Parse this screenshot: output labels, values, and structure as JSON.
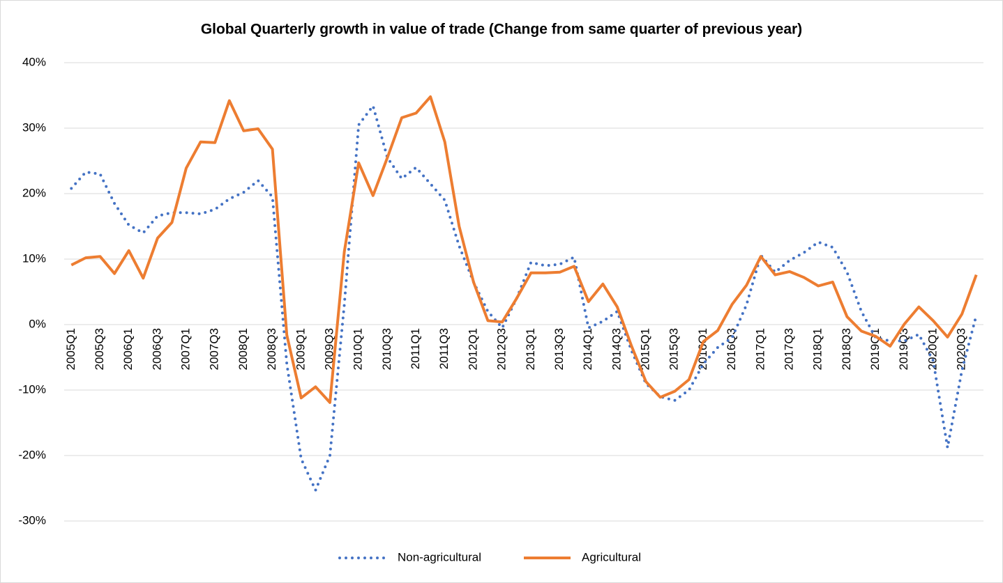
{
  "chart_data": {
    "type": "line",
    "title": "Global Quarterly growth in value of trade (Change from same quarter of previous year)",
    "categories": [
      "2005Q1",
      null,
      "2005Q3",
      null,
      "2006Q1",
      null,
      "2006Q3",
      null,
      "2007Q1",
      null,
      "2007Q3",
      null,
      "2008Q1",
      null,
      "2008Q3",
      null,
      "2009Q1",
      null,
      "2009Q3",
      null,
      "2010Q1",
      null,
      "2010Q3",
      null,
      "2011Q1",
      null,
      "2011Q3",
      null,
      "2012Q1",
      null,
      "2012Q3",
      null,
      "2013Q1",
      null,
      "2013Q3",
      null,
      "2014Q1",
      null,
      "2014Q3",
      null,
      "2015Q1",
      null,
      "2015Q3",
      null,
      "2016Q1",
      null,
      "2016Q3",
      null,
      "2017Q1",
      null,
      "2017Q3",
      null,
      "2018Q1",
      null,
      "2018Q3",
      null,
      "2019Q1",
      null,
      "2019Q3",
      null,
      "2020Q1",
      null,
      "2020Q3",
      null
    ],
    "series": [
      {
        "name": "Non-agricultural",
        "color": "#4472c4",
        "dashed": true,
        "values": [
          20.8,
          23.3,
          23.0,
          18.5,
          15.2,
          14.0,
          16.6,
          17.1,
          17.1,
          16.9,
          17.6,
          19.2,
          20.2,
          22.0,
          19.5,
          -6.0,
          -20.5,
          -25.3,
          -20.0,
          3.0,
          30.5,
          33.4,
          25.5,
          22.3,
          24.0,
          21.5,
          19.0,
          12.0,
          6.5,
          2.0,
          -0.5,
          4.0,
          9.5,
          9.0,
          9.2,
          10.3,
          -0.5,
          0.5,
          2.0,
          -4.0,
          -9.0,
          -11.0,
          -11.6,
          -10.0,
          -6.0,
          -3.5,
          -2.0,
          3.0,
          10.6,
          8.0,
          9.8,
          11.0,
          12.6,
          11.8,
          8.0,
          2.0,
          -2.0,
          -2.5,
          -2.5,
          -1.5,
          -5.5,
          -18.8,
          -7.0,
          1.4
        ]
      },
      {
        "name": "Agricultural",
        "color": "#ed7d31",
        "dashed": false,
        "values": [
          9.1,
          10.2,
          10.4,
          7.8,
          11.3,
          7.1,
          13.2,
          15.6,
          23.9,
          27.9,
          27.8,
          34.2,
          29.6,
          29.9,
          26.8,
          -1.6,
          -11.2,
          -9.5,
          -11.9,
          11.1,
          24.7,
          19.7,
          25.5,
          31.6,
          32.3,
          34.8,
          27.9,
          15.0,
          6.5,
          0.6,
          0.4,
          4.0,
          7.9,
          7.9,
          8.0,
          8.9,
          3.5,
          6.2,
          2.7,
          -3.3,
          -8.7,
          -11.1,
          -10.2,
          -8.4,
          -2.6,
          -0.9,
          3.1,
          6.0,
          10.4,
          7.6,
          8.1,
          7.2,
          5.9,
          6.5,
          1.2,
          -1.0,
          -1.8,
          -3.3,
          0.1,
          2.7,
          0.6,
          -1.9,
          1.6,
          7.6
        ]
      }
    ],
    "ylim": [
      -30,
      40
    ],
    "yticks": [
      {
        "value": -30,
        "label": "-30%"
      },
      {
        "value": -20,
        "label": "-20%"
      },
      {
        "value": -10,
        "label": "-10%"
      },
      {
        "value": 0,
        "label": "0%"
      },
      {
        "value": 10,
        "label": "10%"
      },
      {
        "value": 20,
        "label": "20%"
      },
      {
        "value": 30,
        "label": "30%"
      },
      {
        "value": 40,
        "label": "40%"
      }
    ],
    "grid": true,
    "legend": "bottom"
  }
}
